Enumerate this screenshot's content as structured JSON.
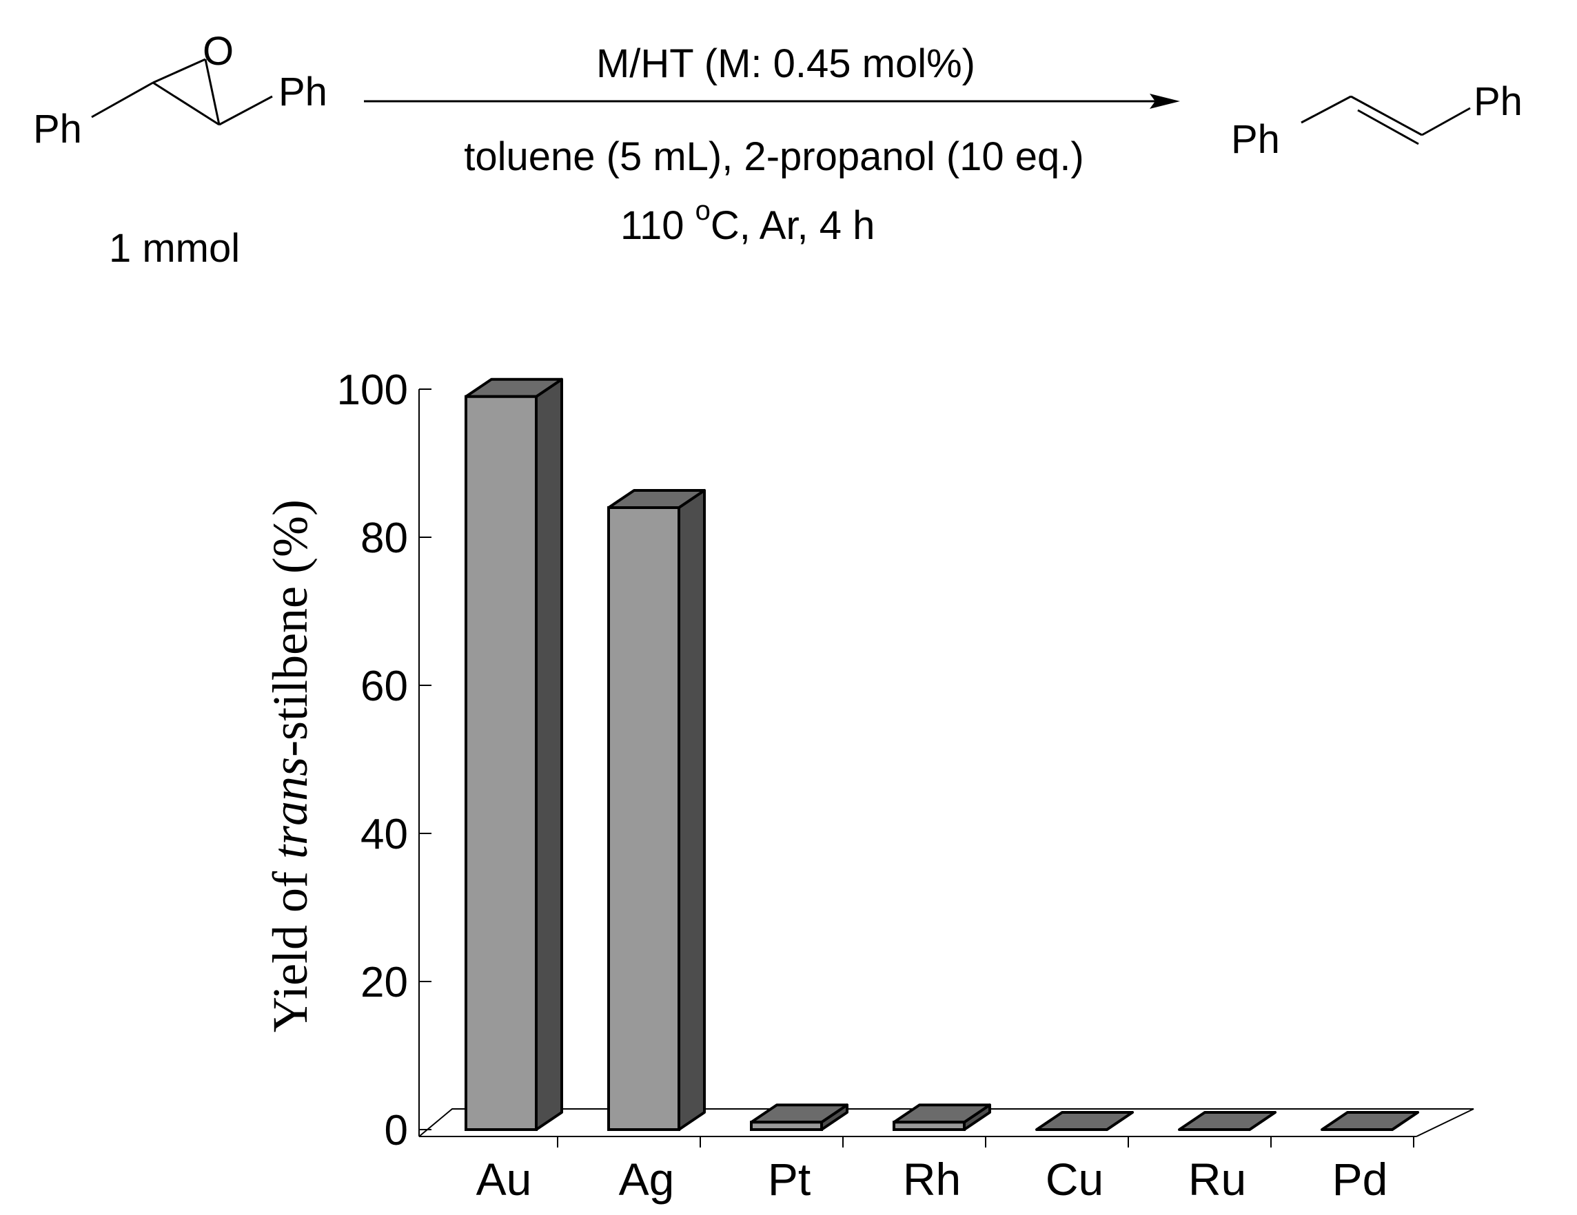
{
  "scheme": {
    "reactant_ph_left": "Ph",
    "reactant_o": "O",
    "reactant_ph_right": "Ph",
    "reactant_amount": "1 mmol",
    "condition_top": "M/HT (M: 0.45 mol%)",
    "condition_line2": "toluene (5 mL), 2-propanol (10 eq.)",
    "condition_line3_pre": "110 ",
    "condition_line3_sup": "o",
    "condition_line3_post": "C, Ar, 4 h",
    "product_ph_left": "Ph",
    "product_ph_right": "Ph"
  },
  "chart_data": {
    "type": "bar",
    "categories": [
      "Au",
      "Ag",
      "Pt",
      "Rh",
      "Cu",
      "Ru",
      "Pd"
    ],
    "values": [
      99,
      84,
      1,
      1,
      0,
      0,
      0
    ],
    "ylabel_pre": "Yield of ",
    "ylabel_italic": "trans",
    "ylabel_post": "-stilbene (%)",
    "ylim": [
      0,
      100
    ],
    "yticks": [
      0,
      20,
      40,
      60,
      80,
      100
    ],
    "style": "3d",
    "colors": {
      "front": "#999999",
      "side": "#4d4d4d",
      "top": "#6b6b6b"
    }
  }
}
